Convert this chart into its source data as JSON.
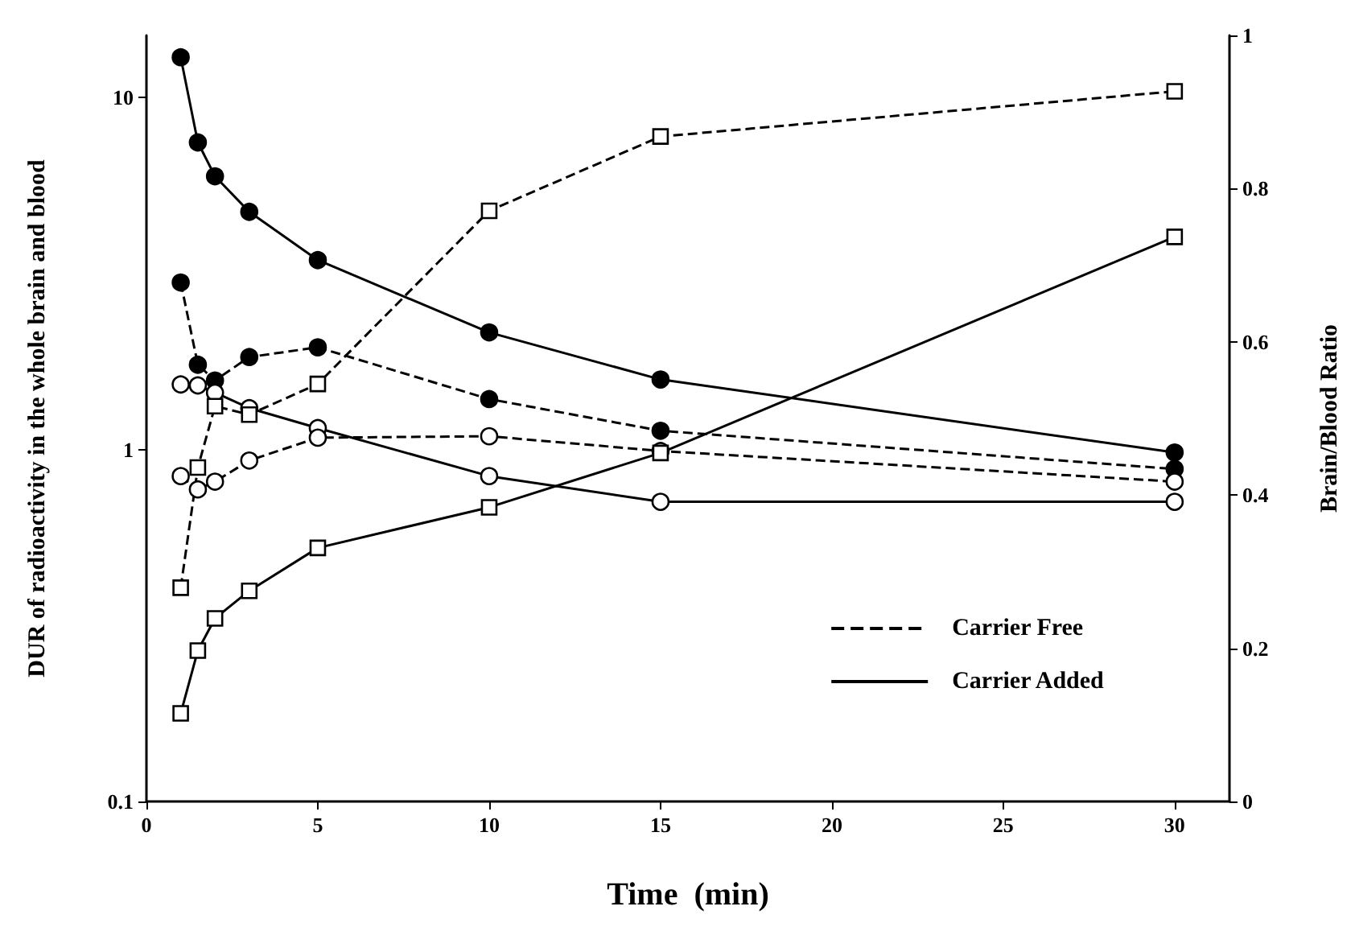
{
  "chart_data": {
    "type": "line",
    "xlabel": "Time  (min)",
    "ylabel": "DUR of radioactivity in the whole brain and blood",
    "y2label": "Brain/Blood Ratio",
    "x": [
      1,
      1.5,
      2,
      3,
      5,
      10,
      15,
      30
    ],
    "xlim": [
      0,
      31.6
    ],
    "xticks": [
      0,
      5,
      10,
      15,
      20,
      25,
      30
    ],
    "ylim": [
      0.1,
      15
    ],
    "yticks": [
      0.1,
      1,
      10
    ],
    "log": "y",
    "y2lim": [
      0,
      1
    ],
    "y2ticks": [
      0,
      0.2,
      0.4,
      0.6,
      0.8,
      1
    ],
    "legend": "bottom right",
    "grid": false,
    "series": [
      {
        "name": "Carrier Free",
        "color": "#000000",
        "marker": "circle",
        "line_style": "dashed",
        "values": [
          2.98,
          1.74,
          1.57,
          1.83,
          1.95,
          1.39,
          1.13,
          0.88
        ]
      },
      {
        "name": "Carrier Added",
        "color": "#000000",
        "marker": "circle",
        "line_style": "solid",
        "values": [
          13.0,
          7.45,
          5.97,
          4.73,
          3.45,
          2.15,
          1.58,
          0.98
        ]
      },
      {
        "color": "#000000",
        "marker": "circle-open",
        "line_style": "solid",
        "values": [
          1.53,
          1.52,
          1.45,
          1.31,
          1.15,
          0.84,
          0.71,
          0.71
        ]
      },
      {
        "color": "#000000",
        "marker": "circle-open",
        "line_style": "dashed",
        "values": [
          0.84,
          0.77,
          0.81,
          0.93,
          1.08,
          1.09,
          0.99,
          0.81
        ]
      },
      {
        "color": "#000000",
        "marker": "square-open",
        "line_style": "dashed",
        "axis": "y2",
        "values": [
          0.279,
          0.436,
          0.516,
          0.505,
          0.545,
          0.771,
          0.868,
          0.927
        ]
      },
      {
        "color": "#000000",
        "marker": "square-open",
        "line_style": "solid",
        "axis": "y2",
        "values": [
          0.115,
          0.197,
          0.239,
          0.275,
          0.331,
          0.384,
          0.455,
          0.737
        ]
      }
    ]
  }
}
